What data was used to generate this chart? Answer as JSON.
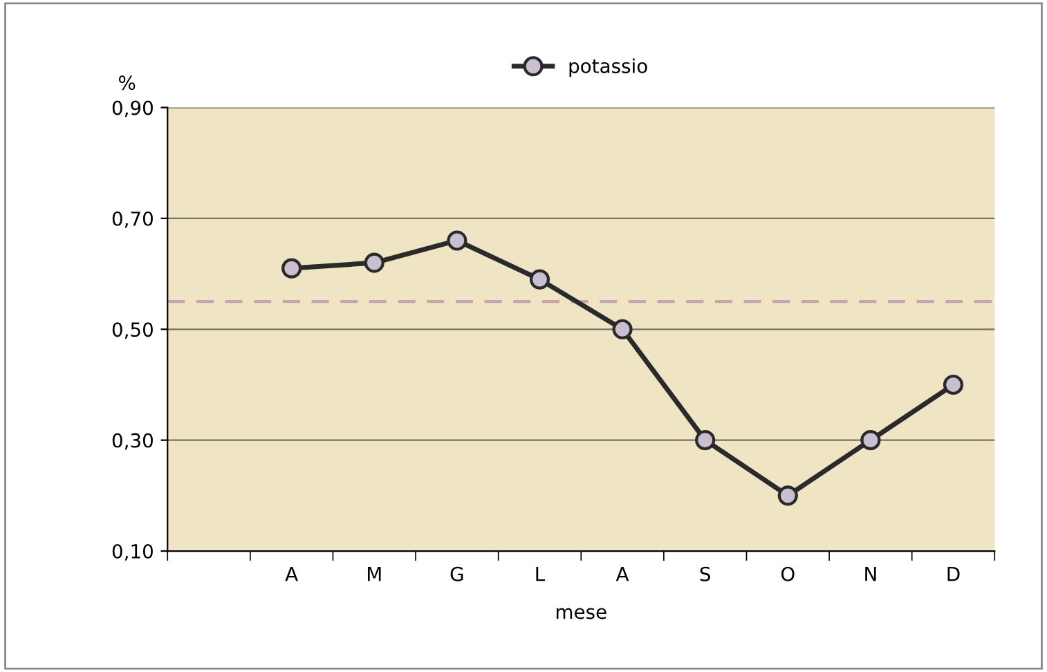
{
  "chart_data": {
    "type": "line",
    "ylabel": "%",
    "xlabel": "mese",
    "categories": [
      null,
      "A",
      "M",
      "G",
      "L",
      "A",
      "S",
      "O",
      "N",
      "D"
    ],
    "series": [
      {
        "name": "potassio",
        "color": "#2a2a2a",
        "values": [
          null,
          0.61,
          0.62,
          0.66,
          0.59,
          0.5,
          0.3,
          0.2,
          0.3,
          0.4
        ]
      }
    ],
    "ylim": [
      0.1,
      0.9
    ],
    "yticks": [
      {
        "value": 0.1,
        "label": "0,10"
      },
      {
        "value": 0.3,
        "label": "0,30"
      },
      {
        "value": 0.5,
        "label": "0,50"
      },
      {
        "value": 0.7,
        "label": "0,70"
      },
      {
        "value": 0.9,
        "label": "0,90"
      }
    ],
    "ref_lines": [
      {
        "axis": "y",
        "value": 0.55,
        "color": "#c9a3ad",
        "line_style": "dashed"
      }
    ],
    "grid": "y",
    "legend": "top",
    "marker": "circle",
    "line_style": "solid"
  }
}
